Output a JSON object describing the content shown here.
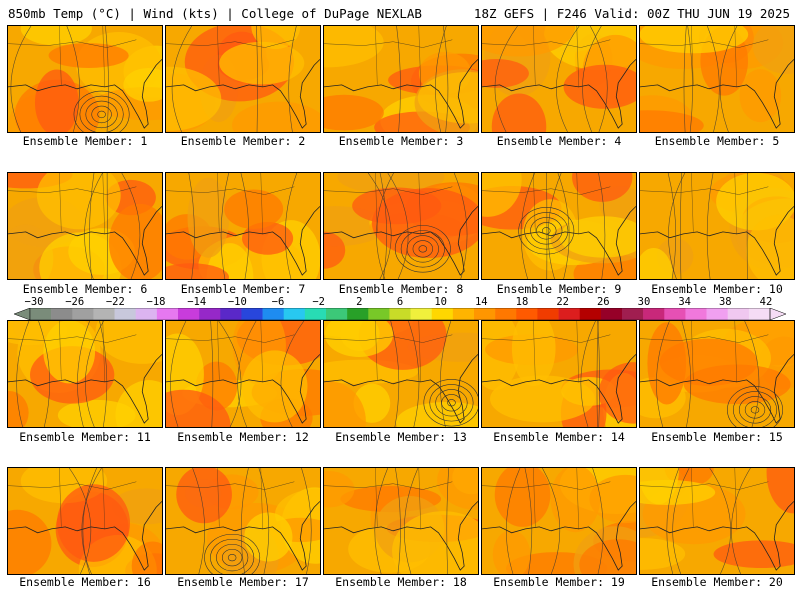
{
  "header": {
    "left_title": "850mb Temp (°C) | Wind (kts) | College of DuPage NEXLAB",
    "right_title": "18Z GEFS | F246 Valid: 00Z THU JUN 19 2025"
  },
  "panels": [
    {
      "label": "Ensemble Member: 1"
    },
    {
      "label": "Ensemble Member: 2"
    },
    {
      "label": "Ensemble Member: 3"
    },
    {
      "label": "Ensemble Member: 4"
    },
    {
      "label": "Ensemble Member: 5"
    },
    {
      "label": "Ensemble Member: 6"
    },
    {
      "label": "Ensemble Member: 7"
    },
    {
      "label": "Ensemble Member: 8"
    },
    {
      "label": "Ensemble Member: 9"
    },
    {
      "label": "Ensemble Member: 10"
    },
    {
      "label": "Ensemble Member: 11"
    },
    {
      "label": "Ensemble Member: 12"
    },
    {
      "label": "Ensemble Member: 13"
    },
    {
      "label": "Ensemble Member: 14"
    },
    {
      "label": "Ensemble Member: 15"
    },
    {
      "label": "Ensemble Member: 16"
    },
    {
      "label": "Ensemble Member: 17"
    },
    {
      "label": "Ensemble Member: 18"
    },
    {
      "label": "Ensemble Member: 19"
    },
    {
      "label": "Ensemble Member: 20"
    }
  ],
  "colorbar": {
    "labels": [
      "−30",
      "−26",
      "−22",
      "−18",
      "−14",
      "−10",
      "−6",
      "−2",
      "2",
      "6",
      "10",
      "14",
      "18",
      "22",
      "26",
      "30",
      "34",
      "38",
      "42"
    ],
    "colors": [
      "#7a8c7a",
      "#8c8c8c",
      "#a0a0a0",
      "#b4b4b4",
      "#c8c8dc",
      "#dcb4f0",
      "#e678f0",
      "#c83cdc",
      "#9628c8",
      "#5a28c8",
      "#2846dc",
      "#1e8cf0",
      "#28c8f0",
      "#28dcb4",
      "#3cc878",
      "#28a028",
      "#78c828",
      "#c8dc28",
      "#f0f03c",
      "#ffd700",
      "#ffb400",
      "#ff9600",
      "#ff7800",
      "#ff5a00",
      "#f03c00",
      "#dc1e1e",
      "#b40000",
      "#960028",
      "#a01e50",
      "#c8287a",
      "#e650b4",
      "#f078dc",
      "#f0a0f0",
      "#f0c8f0",
      "#f5dcf5"
    ]
  }
}
